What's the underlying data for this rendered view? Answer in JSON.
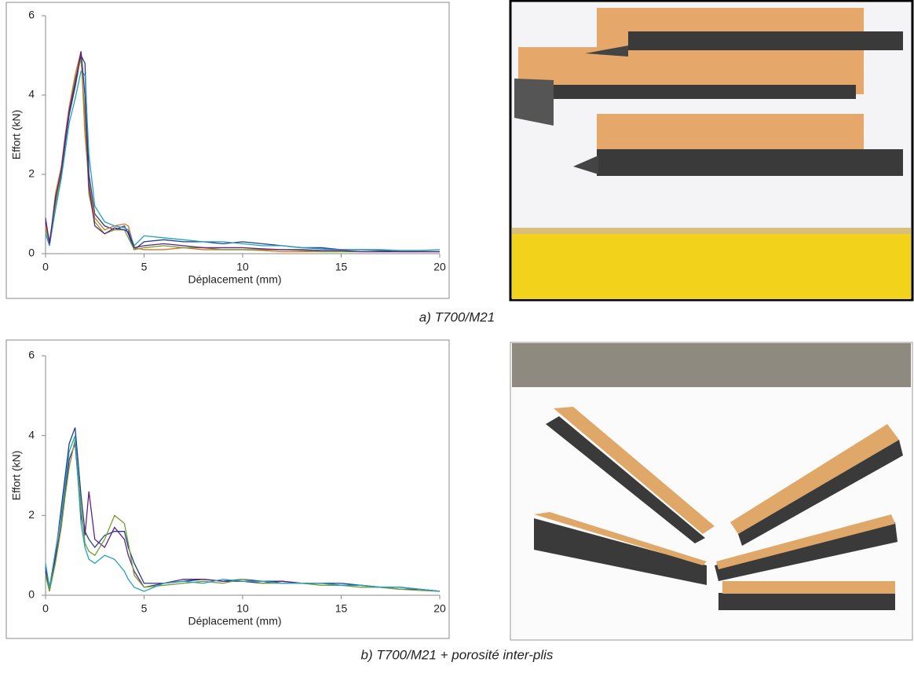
{
  "chart_data": [
    {
      "type": "line",
      "caption": "a) T700/M21",
      "xlabel": "Déplacement (mm)",
      "ylabel": "Effort (kN)",
      "xlim": [
        0,
        20
      ],
      "xticks": [
        0,
        5,
        10,
        15,
        20
      ],
      "ylim": [
        0,
        6
      ],
      "yticks": [
        0,
        2,
        4,
        6
      ],
      "x": [
        0,
        0.2,
        0.5,
        0.8,
        1,
        1.2,
        1.5,
        1.8,
        2,
        2.2,
        2.5,
        3,
        3.5,
        4,
        4.2,
        4.5,
        5,
        6,
        7,
        8,
        9,
        10,
        11,
        12,
        13,
        14,
        15,
        16,
        17,
        18,
        19,
        20
      ],
      "series": [
        {
          "color": "#1f3e8c",
          "values": [
            0.8,
            0.3,
            1.3,
            2.0,
            2.8,
            3.5,
            4.2,
            5.0,
            4.8,
            2.0,
            1.0,
            0.7,
            0.6,
            0.7,
            0.5,
            0.1,
            0.3,
            0.35,
            0.3,
            0.3,
            0.25,
            0.3,
            0.25,
            0.2,
            0.15,
            0.15,
            0.1,
            0.1,
            0.08,
            0.05,
            0.05,
            0.05
          ]
        },
        {
          "color": "#e07020",
          "values": [
            0.7,
            0.2,
            1.5,
            2.2,
            3.0,
            3.7,
            4.5,
            5.1,
            3.0,
            1.8,
            0.9,
            0.6,
            0.7,
            0.75,
            0.7,
            0.15,
            0.1,
            0.1,
            0.15,
            0.1,
            0.1,
            0.1,
            0.08,
            0.05,
            0.05,
            0.05,
            0.05,
            0.05,
            0.05,
            0.05,
            0.05,
            0.05
          ]
        },
        {
          "color": "#70a030",
          "values": [
            0.6,
            0.3,
            1.2,
            2.1,
            2.9,
            3.6,
            4.4,
            4.9,
            3.5,
            1.5,
            0.8,
            0.5,
            0.6,
            0.6,
            0.4,
            0.1,
            0.15,
            0.2,
            0.15,
            0.15,
            0.1,
            0.1,
            0.1,
            0.1,
            0.08,
            0.05,
            0.05,
            0.05,
            0.05,
            0.05,
            0.05,
            0.05
          ]
        },
        {
          "color": "#20a0c0",
          "values": [
            0.5,
            0.2,
            1.1,
            1.9,
            2.6,
            3.3,
            3.9,
            4.6,
            4.5,
            2.5,
            1.2,
            0.8,
            0.7,
            0.65,
            0.6,
            0.2,
            0.45,
            0.4,
            0.35,
            0.3,
            0.3,
            0.25,
            0.2,
            0.2,
            0.15,
            0.12,
            0.1,
            0.1,
            0.1,
            0.08,
            0.08,
            0.1
          ]
        },
        {
          "color": "#602080",
          "values": [
            0.9,
            0.25,
            1.4,
            2.1,
            2.9,
            3.6,
            4.3,
            5.1,
            4.0,
            1.7,
            0.7,
            0.5,
            0.65,
            0.6,
            0.55,
            0.15,
            0.2,
            0.25,
            0.2,
            0.15,
            0.15,
            0.15,
            0.12,
            0.1,
            0.1,
            0.08,
            0.08,
            0.05,
            0.05,
            0.05,
            0.05,
            0.05
          ]
        }
      ]
    },
    {
      "type": "line",
      "caption": "b) T700/M21 + porosité inter-plis",
      "xlabel": "Déplacement (mm)",
      "ylabel": "Effort (kN)",
      "xlim": [
        0,
        20
      ],
      "xticks": [
        0,
        5,
        10,
        15,
        20
      ],
      "ylim": [
        0,
        6
      ],
      "yticks": [
        0,
        2,
        4,
        6
      ],
      "x": [
        0,
        0.2,
        0.5,
        0.8,
        1,
        1.2,
        1.5,
        1.8,
        2,
        2.2,
        2.5,
        3,
        3.5,
        4,
        4.2,
        4.5,
        5,
        6,
        7,
        8,
        9,
        10,
        11,
        12,
        13,
        14,
        15,
        16,
        17,
        18,
        19,
        20
      ],
      "series": [
        {
          "color": "#1f3e8c",
          "values": [
            0.7,
            0.1,
            1.0,
            2.2,
            3.0,
            3.8,
            4.2,
            2.5,
            1.6,
            1.4,
            1.2,
            1.5,
            1.6,
            1.6,
            1.2,
            0.8,
            0.3,
            0.3,
            0.35,
            0.4,
            0.35,
            0.4,
            0.35,
            0.35,
            0.3,
            0.3,
            0.3,
            0.25,
            0.2,
            0.2,
            0.15,
            0.1
          ]
        },
        {
          "color": "#602080",
          "values": [
            0.6,
            0.2,
            0.9,
            1.8,
            2.6,
            3.4,
            3.8,
            2.0,
            1.5,
            2.6,
            1.4,
            1.2,
            1.7,
            1.4,
            1.0,
            0.6,
            0.2,
            0.3,
            0.4,
            0.4,
            0.35,
            0.35,
            0.3,
            0.35,
            0.3,
            0.3,
            0.25,
            0.25,
            0.2,
            0.15,
            0.15,
            0.1
          ]
        },
        {
          "color": "#70a030",
          "values": [
            0.5,
            0.1,
            0.8,
            1.7,
            2.5,
            3.2,
            3.9,
            2.2,
            1.3,
            1.1,
            1.0,
            1.4,
            2.0,
            1.8,
            1.3,
            0.5,
            0.2,
            0.25,
            0.3,
            0.35,
            0.3,
            0.4,
            0.3,
            0.3,
            0.3,
            0.25,
            0.25,
            0.2,
            0.2,
            0.15,
            0.12,
            0.1
          ]
        },
        {
          "color": "#20a0c0",
          "values": [
            0.8,
            0.2,
            1.1,
            2.0,
            2.8,
            3.6,
            4.0,
            1.8,
            1.2,
            0.9,
            0.8,
            1.0,
            0.9,
            0.6,
            0.4,
            0.2,
            0.1,
            0.3,
            0.35,
            0.3,
            0.4,
            0.35,
            0.35,
            0.3,
            0.3,
            0.3,
            0.25,
            0.25,
            0.2,
            0.2,
            0.15,
            0.1
          ]
        }
      ]
    }
  ]
}
